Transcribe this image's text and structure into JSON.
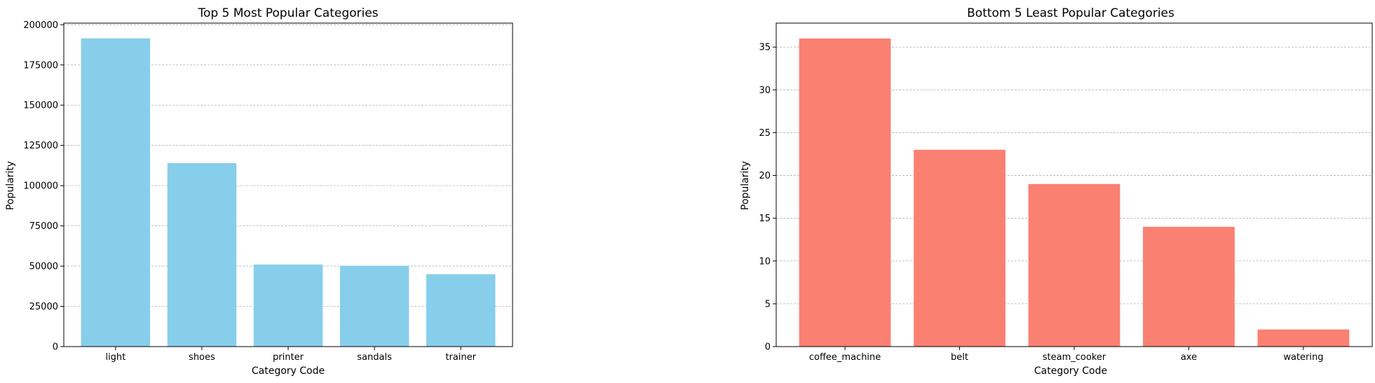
{
  "chart_data": [
    {
      "type": "bar",
      "title": "Top 5 Most Popular Categories",
      "xlabel": "Category Code",
      "ylabel": "Popularity",
      "categories": [
        "light",
        "shoes",
        "printer",
        "sandals",
        "trainer"
      ],
      "values": [
        191500,
        114000,
        51000,
        50200,
        45000
      ],
      "ylim": [
        0,
        201000
      ],
      "yticks": [
        0,
        25000,
        50000,
        75000,
        100000,
        125000,
        150000,
        175000,
        200000
      ],
      "grid": "y",
      "color": "#87ceeb"
    },
    {
      "type": "bar",
      "title": "Bottom 5 Least Popular Categories",
      "xlabel": "Category Code",
      "ylabel": "Popularity",
      "categories": [
        "coffee_machine",
        "belt",
        "steam_cooker",
        "axe",
        "watering"
      ],
      "values": [
        36,
        23,
        19,
        14,
        2
      ],
      "ylim": [
        0,
        37.8
      ],
      "yticks": [
        0,
        5,
        10,
        15,
        20,
        25,
        30,
        35
      ],
      "grid": "y",
      "color": "#fa8072"
    }
  ]
}
